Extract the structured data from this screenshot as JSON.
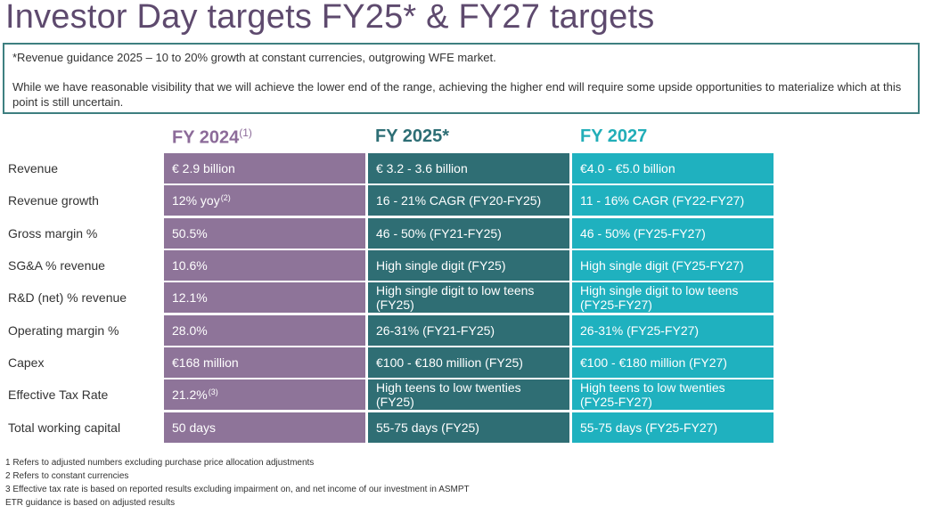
{
  "title": "Investor Day targets FY25* & FY27 targets",
  "note": {
    "line1": "*Revenue guidance 2025 – 10 to 20% growth at constant currencies, outgrowing WFE market.",
    "line2": "While we have reasonable visibility that we will achieve the lower end of the range, achieving the higher end will require some upside opportunities to materialize which at this point is still uncertain."
  },
  "columns": [
    {
      "label": "FY 2024",
      "sup": "(1)"
    },
    {
      "label": "FY 2025*"
    },
    {
      "label": "FY 2027"
    }
  ],
  "rows": [
    {
      "label": "Revenue",
      "fy2024": "€ 2.9 billion",
      "fy2025": "€ 3.2 - 3.6 billion",
      "fy2027": "€4.0 - €5.0 billion"
    },
    {
      "label": "Revenue growth",
      "fy2024": "12% yoy",
      "fy2024_sup": "(2)",
      "fy2025": "16 - 21% CAGR (FY20-FY25)",
      "fy2027": "11 - 16% CAGR (FY22-FY27)"
    },
    {
      "label": "Gross margin %",
      "fy2024": "50.5%",
      "fy2025": "46 - 50% (FY21-FY25)",
      "fy2027": "46 - 50% (FY25-FY27)"
    },
    {
      "label": "SG&A % revenue",
      "fy2024": "10.6%",
      "fy2025": "High single digit (FY25)",
      "fy2027": "High single digit (FY25-FY27)"
    },
    {
      "label": "R&D (net) % revenue",
      "fy2024": "12.1%",
      "fy2025": "High single digit to low teens (FY25)",
      "fy2027": "High single digit to low teens (FY25-FY27)"
    },
    {
      "label": "Operating margin %",
      "fy2024": "28.0%",
      "fy2025": "26-31% (FY21-FY25)",
      "fy2027": "26-31% (FY25-FY27)"
    },
    {
      "label": "Capex",
      "fy2024": "€168 million",
      "fy2025": "€100 - €180 million (FY25)",
      "fy2027": "€100 - €180 million (FY27)"
    },
    {
      "label": "Effective Tax Rate",
      "fy2024": "21.2%",
      "fy2024_sup": "(3)",
      "fy2025": "High teens to low twenties (FY25)",
      "fy2027": "High teens to low twenties (FY25-FY27)"
    },
    {
      "label": "Total working capital",
      "fy2024": "50 days",
      "fy2025": "55-75 days (FY25)",
      "fy2027": "55-75 days (FY25-FY27)"
    }
  ],
  "footnotes": [
    "1 Refers to adjusted numbers excluding purchase price allocation adjustments",
    "2 Refers to constant currencies",
    "3 Effective tax rate is based on reported results excluding impairment on, and net income of our investment in ASMPT",
    "ETR guidance is based on adjusted results"
  ],
  "colors": {
    "title": "#5e4a6e",
    "fy2024": "#8e7499",
    "fy2025": "#2f6e74",
    "fy2027": "#1fb1bf",
    "border": "#3e7f80"
  }
}
